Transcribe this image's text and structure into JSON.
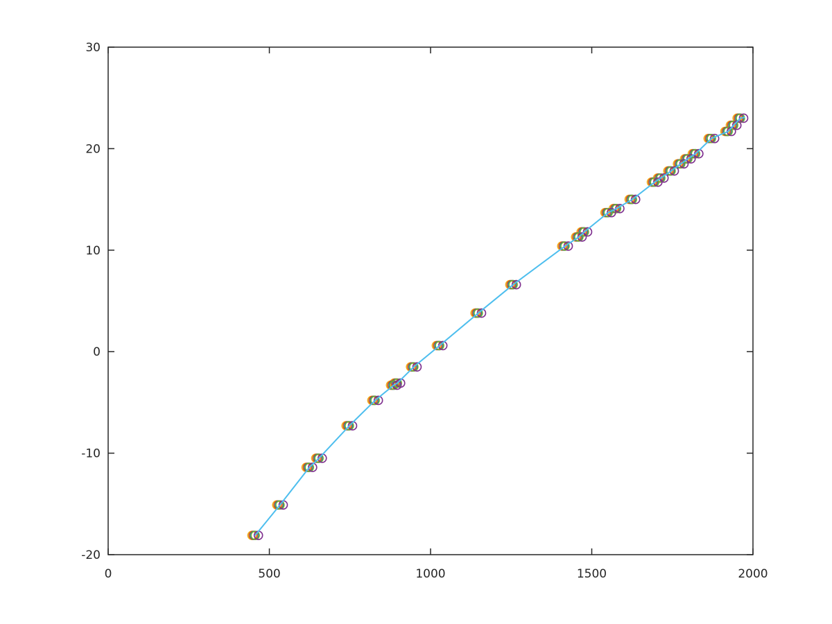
{
  "chart_data": {
    "type": "scatter",
    "title": "",
    "xlabel": "",
    "ylabel": "",
    "xlim": [
      0,
      2000
    ],
    "ylim": [
      -20,
      30
    ],
    "xticks": [
      0,
      500,
      1000,
      1500,
      2000
    ],
    "yticks": [
      -20,
      -10,
      0,
      10,
      20,
      30
    ],
    "xtick_labels": [
      "0",
      "500",
      "1000",
      "1500",
      "2000"
    ],
    "ytick_labels": [
      "-20",
      "-10",
      "0",
      "10",
      "20",
      "30"
    ],
    "grid": false,
    "legend": "none",
    "y": [
      -18.1,
      -15.1,
      -11.4,
      -10.5,
      -7.3,
      -4.8,
      -3.3,
      -3.1,
      -1.5,
      0.6,
      3.8,
      6.6,
      10.4,
      11.3,
      11.8,
      13.7,
      14.1,
      15.0,
      16.7,
      17.1,
      17.8,
      18.5,
      19.0,
      19.5,
      21.0,
      21.7,
      22.3,
      23.0
    ],
    "series": [
      {
        "color": "#EDB120",
        "marker": "circle",
        "x": [
          446,
          523,
          614,
          644,
          738,
          818,
          876,
          887,
          938,
          1018,
          1138,
          1246,
          1407,
          1450,
          1467,
          1541,
          1567,
          1616,
          1685,
          1704,
          1736,
          1766,
          1788,
          1812,
          1861,
          1913,
          1930,
          1951
        ]
      },
      {
        "color": "#D95319",
        "marker": "circle",
        "x": [
          450,
          527,
          618,
          648,
          742,
          822,
          880,
          891,
          942,
          1022,
          1142,
          1250,
          1411,
          1454,
          1471,
          1545,
          1571,
          1620,
          1689,
          1708,
          1740,
          1770,
          1792,
          1816,
          1865,
          1917,
          1934,
          1955
        ]
      },
      {
        "color": "#0072BD",
        "marker": "circle",
        "x": [
          454,
          531,
          622,
          652,
          746,
          826,
          884,
          895,
          946,
          1026,
          1146,
          1254,
          1415,
          1458,
          1475,
          1549,
          1575,
          1624,
          1693,
          1712,
          1744,
          1774,
          1796,
          1820,
          1869,
          1921,
          1938,
          1959
        ]
      },
      {
        "color": "#77AC30",
        "marker": "circle",
        "x": [
          456,
          533,
          624,
          654,
          748,
          828,
          886,
          897,
          948,
          1028,
          1148,
          1256,
          1417,
          1460,
          1477,
          1551,
          1577,
          1626,
          1695,
          1714,
          1746,
          1776,
          1798,
          1822,
          1871,
          1923,
          1940,
          1961
        ]
      },
      {
        "color": "#7E2F8E",
        "marker": "circle",
        "x": [
          466,
          543,
          634,
          664,
          758,
          838,
          896,
          907,
          958,
          1038,
          1158,
          1266,
          1427,
          1470,
          1487,
          1561,
          1587,
          1636,
          1705,
          1724,
          1756,
          1786,
          1808,
          1832,
          1881,
          1933,
          1950,
          1971
        ]
      }
    ],
    "fit_line": {
      "color": "#4DBEEE",
      "x": [
        456,
        533,
        624,
        654,
        748,
        828,
        886,
        897,
        948,
        1028,
        1148,
        1256,
        1417,
        1460,
        1477,
        1551,
        1577,
        1626,
        1695,
        1714,
        1746,
        1776,
        1798,
        1822,
        1871,
        1923,
        1940,
        1961,
        1975
      ],
      "y": [
        -18.1,
        -15.1,
        -11.4,
        -10.5,
        -7.3,
        -4.8,
        -3.3,
        -3.1,
        -1.5,
        0.6,
        3.8,
        6.6,
        10.4,
        11.3,
        11.8,
        13.7,
        14.1,
        15.0,
        16.7,
        17.1,
        17.8,
        18.5,
        19.0,
        19.5,
        21.0,
        21.7,
        22.3,
        23.0,
        23.1
      ]
    }
  }
}
